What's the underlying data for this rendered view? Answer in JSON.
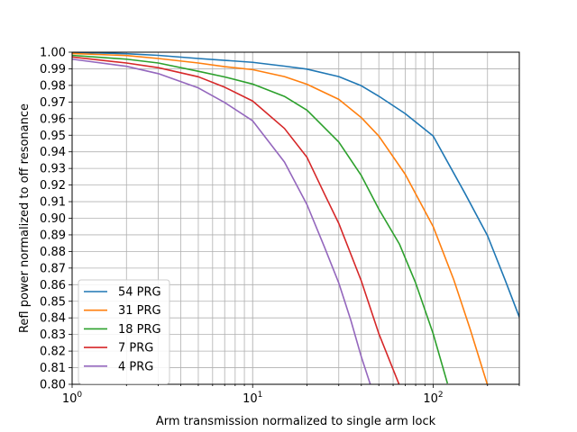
{
  "chart_data": {
    "type": "line",
    "xlabel": "Arm transmission normalized to single arm lock",
    "ylabel": "Refl power normalized to off resonance",
    "xscale": "log",
    "xlim": [
      1,
      300
    ],
    "ylim": [
      0.8,
      1.0
    ],
    "grid": true,
    "legend_position": "lower-left",
    "x_ticks": [
      {
        "value": 1,
        "base": "10",
        "exp": "0"
      },
      {
        "value": 10,
        "base": "10",
        "exp": "1"
      },
      {
        "value": 100,
        "base": "10",
        "exp": "2"
      }
    ],
    "y_ticks": [
      "0.80",
      "0.81",
      "0.82",
      "0.83",
      "0.84",
      "0.85",
      "0.86",
      "0.87",
      "0.88",
      "0.89",
      "0.90",
      "0.91",
      "0.92",
      "0.93",
      "0.94",
      "0.95",
      "0.96",
      "0.97",
      "0.98",
      "0.99",
      "1.00"
    ],
    "series": [
      {
        "name": "54 PRG",
        "color": "#1f77b4",
        "points": [
          [
            1,
            0.9999
          ],
          [
            2,
            0.9991
          ],
          [
            3,
            0.9981
          ],
          [
            5,
            0.9962
          ],
          [
            7,
            0.9951
          ],
          [
            10,
            0.9939
          ],
          [
            15,
            0.9916
          ],
          [
            20,
            0.9898
          ],
          [
            30,
            0.9853
          ],
          [
            40,
            0.9798
          ],
          [
            50,
            0.9735
          ],
          [
            70,
            0.963
          ],
          [
            100,
            0.9495
          ],
          [
            150,
            0.915
          ],
          [
            200,
            0.8895
          ],
          [
            250,
            0.863
          ],
          [
            300,
            0.8405
          ]
        ]
      },
      {
        "name": "31 PRG",
        "color": "#ff7f0e",
        "points": [
          [
            1,
            0.9992
          ],
          [
            2,
            0.998
          ],
          [
            3,
            0.9962
          ],
          [
            5,
            0.9935
          ],
          [
            7,
            0.9913
          ],
          [
            10,
            0.9895
          ],
          [
            15,
            0.9853
          ],
          [
            20,
            0.9807
          ],
          [
            30,
            0.9716
          ],
          [
            40,
            0.9606
          ],
          [
            50,
            0.9495
          ],
          [
            70,
            0.9265
          ],
          [
            100,
            0.895
          ],
          [
            130,
            0.863
          ],
          [
            160,
            0.8335
          ],
          [
            200,
            0.7995
          ]
        ]
      },
      {
        "name": "18 PRG",
        "color": "#2ca02c",
        "points": [
          [
            1,
            0.9981
          ],
          [
            2,
            0.9958
          ],
          [
            3,
            0.9935
          ],
          [
            5,
            0.9885
          ],
          [
            7,
            0.9851
          ],
          [
            10,
            0.9808
          ],
          [
            15,
            0.9734
          ],
          [
            20,
            0.9651
          ],
          [
            30,
            0.9459
          ],
          [
            40,
            0.9257
          ],
          [
            50,
            0.9055
          ],
          [
            65,
            0.8845
          ],
          [
            80,
            0.861
          ],
          [
            100,
            0.8305
          ],
          [
            120,
            0.8005
          ]
        ]
      },
      {
        "name": "7 PRG",
        "color": "#d62728",
        "points": [
          [
            1,
            0.9971
          ],
          [
            2,
            0.9935
          ],
          [
            3,
            0.9907
          ],
          [
            5,
            0.9852
          ],
          [
            7,
            0.9789
          ],
          [
            10,
            0.9706
          ],
          [
            15,
            0.9541
          ],
          [
            20,
            0.9367
          ],
          [
            25,
            0.9146
          ],
          [
            30,
            0.8969
          ],
          [
            40,
            0.8622
          ],
          [
            50,
            0.8305
          ],
          [
            65,
            0.7995
          ]
        ]
      },
      {
        "name": "4 PRG",
        "color": "#9467bd",
        "points": [
          [
            1,
            0.9958
          ],
          [
            2,
            0.9915
          ],
          [
            3,
            0.9871
          ],
          [
            5,
            0.9785
          ],
          [
            7,
            0.9697
          ],
          [
            10,
            0.9587
          ],
          [
            15,
            0.9339
          ],
          [
            20,
            0.9082
          ],
          [
            25,
            0.8826
          ],
          [
            30,
            0.861
          ],
          [
            35,
            0.8385
          ],
          [
            40,
            0.8165
          ],
          [
            45,
            0.7995
          ]
        ]
      }
    ]
  }
}
